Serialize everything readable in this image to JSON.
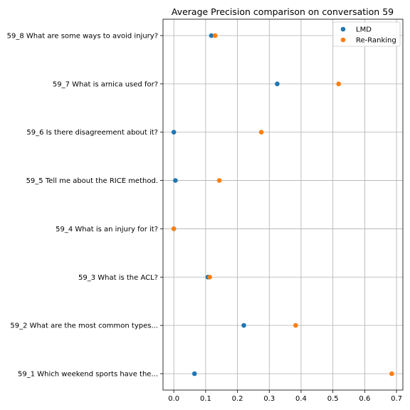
{
  "chart_data": {
    "type": "scatter",
    "title": "Average Precision comparison on conversation 59",
    "xlabel": "",
    "ylabel": "",
    "xlim": [
      -0.034,
      0.72
    ],
    "x_ticks": [
      0.0,
      0.1,
      0.2,
      0.3,
      0.4,
      0.5,
      0.6,
      0.7
    ],
    "x_tick_labels": [
      "0.0",
      "0.1",
      "0.2",
      "0.3",
      "0.4",
      "0.5",
      "0.6",
      "0.7"
    ],
    "categories": [
      "59_1 Which weekend sports have the...",
      "59_2 What are the most common types...",
      "59_3 What is the ACL?",
      "59_4 What is an injury for it?",
      "59_5 Tell me about the RICE method.",
      "59_6 Is there disagreement about it?",
      "59_7 What is arnica used for?",
      "59_8 What are some ways to avoid injury?"
    ],
    "series": [
      {
        "name": "LMD",
        "color": "#1f77b4",
        "values": [
          0.065,
          0.22,
          0.107,
          0.0,
          0.005,
          0.0,
          0.325,
          0.118
        ]
      },
      {
        "name": "Re-Ranking",
        "color": "#ff7f0e",
        "values": [
          0.685,
          0.383,
          0.113,
          0.0,
          0.143,
          0.275,
          0.518,
          0.13
        ]
      }
    ],
    "grid": true,
    "legend_position": "top-right"
  }
}
